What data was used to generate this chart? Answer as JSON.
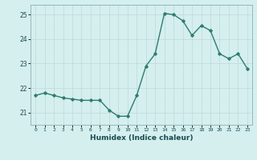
{
  "x": [
    0,
    1,
    2,
    3,
    4,
    5,
    6,
    7,
    8,
    9,
    10,
    11,
    12,
    13,
    14,
    15,
    16,
    17,
    18,
    19,
    20,
    21,
    22,
    23
  ],
  "y": [
    21.7,
    21.8,
    21.7,
    21.6,
    21.55,
    21.5,
    21.5,
    21.5,
    21.1,
    20.85,
    20.85,
    21.7,
    22.9,
    23.4,
    25.05,
    25.0,
    24.75,
    24.15,
    24.55,
    24.35,
    23.4,
    23.2,
    23.4,
    22.8
  ],
  "xlabel": "Humidex (Indice chaleur)",
  "xlim": [
    -0.5,
    23.5
  ],
  "ylim": [
    20.5,
    25.4
  ],
  "yticks": [
    21,
    22,
    23,
    24,
    25
  ],
  "xticks": [
    0,
    1,
    2,
    3,
    4,
    5,
    6,
    7,
    8,
    9,
    10,
    11,
    12,
    13,
    14,
    15,
    16,
    17,
    18,
    19,
    20,
    21,
    22,
    23
  ],
  "line_color": "#2e7d6e",
  "bg_color": "#d4efee",
  "grid_color": "#c0d8d8",
  "marker": "D",
  "marker_size": 1.8,
  "linewidth": 1.0
}
